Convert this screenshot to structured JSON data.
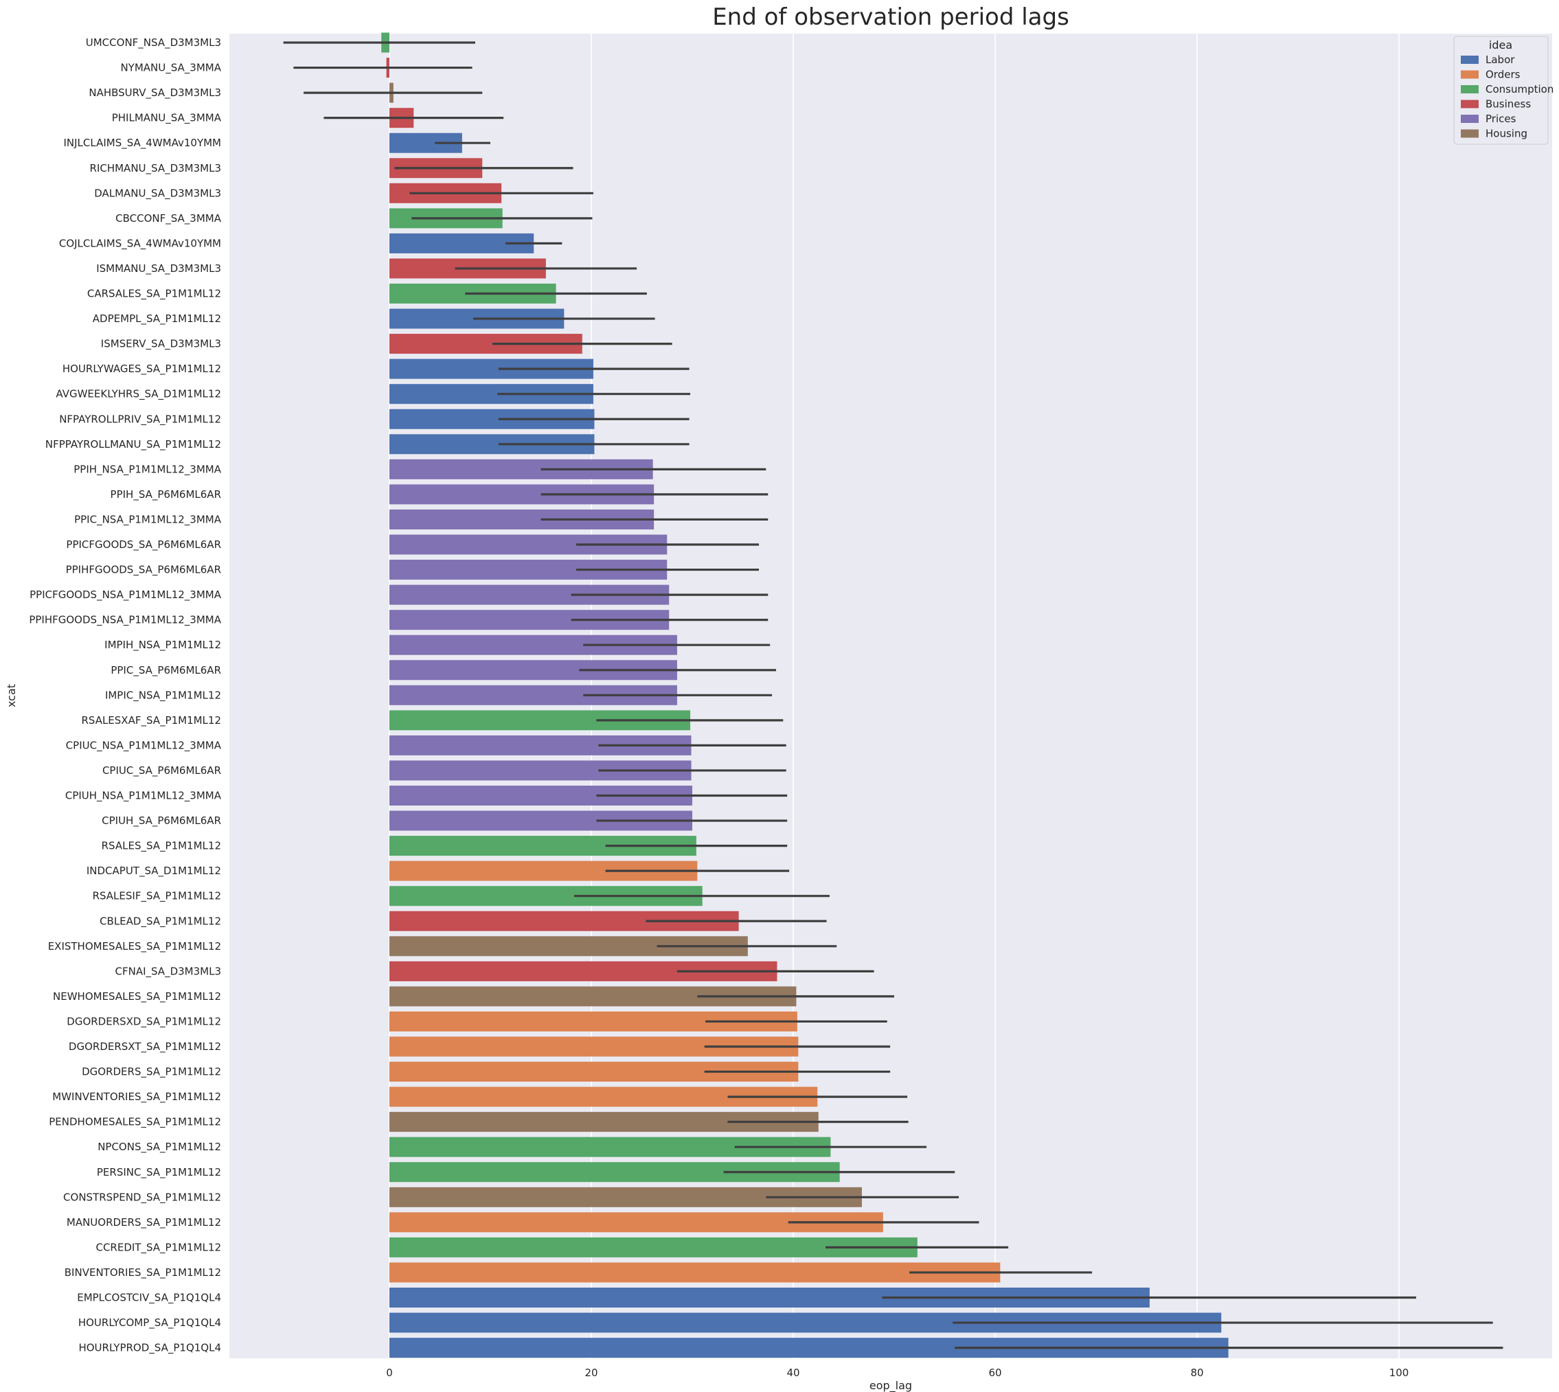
{
  "chart_data": {
    "type": "bar",
    "orientation": "horizontal",
    "title": "End of observation period lags",
    "xlabel": "eop_lag",
    "ylabel": "xcat",
    "xlim": [
      -17,
      115
    ],
    "xticks": [
      0,
      20,
      40,
      60,
      80,
      100
    ],
    "grid": true,
    "legend": {
      "title": "idea",
      "position": "top-right",
      "entries": [
        {
          "name": "Labor",
          "color": "#4c72b0"
        },
        {
          "name": "Orders",
          "color": "#dd8452"
        },
        {
          "name": "Consumption",
          "color": "#55a868"
        },
        {
          "name": "Business",
          "color": "#c44e52"
        },
        {
          "name": "Prices",
          "color": "#8172b3"
        },
        {
          "name": "Housing",
          "color": "#937860"
        }
      ]
    },
    "categories": [
      "UMCCONF_NSA_D3M3ML3",
      "NYMANU_SA_3MMA",
      "NAHBSURV_SA_D3M3ML3",
      "PHILMANU_SA_3MMA",
      "INJLCLAIMS_SA_4WMAv10YMM",
      "RICHMANU_SA_D3M3ML3",
      "DALMANU_SA_D3M3ML3",
      "CBCCONF_SA_3MMA",
      "COJLCLAIMS_SA_4WMAv10YMM",
      "ISMMANU_SA_D3M3ML3",
      "CARSALES_SA_P1M1ML12",
      "ADPEMPL_SA_P1M1ML12",
      "ISMSERV_SA_D3M3ML3",
      "HOURLYWAGES_SA_P1M1ML12",
      "AVGWEEKLYHRS_SA_D1M1ML12",
      "NFPAYROLLPRIV_SA_P1M1ML12",
      "NFPPAYROLLMANU_SA_P1M1ML12",
      "PPIH_NSA_P1M1ML12_3MMA",
      "PPIH_SA_P6M6ML6AR",
      "PPIC_NSA_P1M1ML12_3MMA",
      "PPICFGOODS_SA_P6M6ML6AR",
      "PPIHFGOODS_SA_P6M6ML6AR",
      "PPICFGOODS_NSA_P1M1ML12_3MMA",
      "PPIHFGOODS_NSA_P1M1ML12_3MMA",
      "IMPIH_NSA_P1M1ML12",
      "PPIC_SA_P6M6ML6AR",
      "IMPIC_NSA_P1M1ML12",
      "RSALESXAF_SA_P1M1ML12",
      "CPIUC_NSA_P1M1ML12_3MMA",
      "CPIUC_SA_P6M6ML6AR",
      "CPIUH_NSA_P1M1ML12_3MMA",
      "CPIUH_SA_P6M6ML6AR",
      "RSALES_SA_P1M1ML12",
      "INDCAPUT_SA_D1M1ML12",
      "RSALESIF_SA_P1M1ML12",
      "CBLEAD_SA_P1M1ML12",
      "EXISTHOMESALES_SA_P1M1ML12",
      "CFNAI_SA_D3M3ML3",
      "NEWHOMESALES_SA_P1M1ML12",
      "DGORDERSXD_SA_P1M1ML12",
      "DGORDERSXT_SA_P1M1ML12",
      "DGORDERS_SA_P1M1ML12",
      "MWINVENTORIES_SA_P1M1ML12",
      "PENDHOMESALES_SA_P1M1ML12",
      "NPCONS_SA_P1M1ML12",
      "PERSINC_SA_P1M1ML12",
      "CONSTRSPEND_SA_P1M1ML12",
      "MANUORDERS_SA_P1M1ML12",
      "CCREDIT_SA_P1M1ML12",
      "BINVENTORIES_SA_P1M1ML12",
      "EMPLCOSTCIV_SA_P1Q1QL4",
      "HOURLYCOMP_SA_P1Q1QL4",
      "HOURLYPROD_SA_P1Q1QL4"
    ],
    "groups": [
      "Consumption",
      "Business",
      "Housing",
      "Business",
      "Labor",
      "Business",
      "Business",
      "Consumption",
      "Labor",
      "Business",
      "Consumption",
      "Labor",
      "Business",
      "Labor",
      "Labor",
      "Labor",
      "Labor",
      "Prices",
      "Prices",
      "Prices",
      "Prices",
      "Prices",
      "Prices",
      "Prices",
      "Prices",
      "Prices",
      "Prices",
      "Consumption",
      "Prices",
      "Prices",
      "Prices",
      "Prices",
      "Consumption",
      "Orders",
      "Consumption",
      "Business",
      "Housing",
      "Business",
      "Housing",
      "Orders",
      "Orders",
      "Orders",
      "Orders",
      "Housing",
      "Consumption",
      "Consumption",
      "Housing",
      "Orders",
      "Consumption",
      "Orders",
      "Labor",
      "Labor",
      "Labor"
    ],
    "values": [
      -0.8,
      -0.3,
      0.4,
      2.4,
      7.2,
      9.2,
      11.1,
      11.2,
      14.3,
      15.5,
      16.5,
      17.3,
      19.1,
      20.2,
      20.2,
      20.3,
      20.3,
      26.1,
      26.2,
      26.2,
      27.5,
      27.5,
      27.7,
      27.7,
      28.5,
      28.5,
      28.5,
      29.8,
      29.9,
      29.9,
      30.0,
      30.0,
      30.4,
      30.5,
      31.0,
      34.6,
      35.5,
      38.4,
      40.3,
      40.4,
      40.5,
      40.5,
      42.4,
      42.5,
      43.7,
      44.6,
      46.8,
      48.9,
      52.3,
      60.5,
      75.3,
      82.4,
      83.1
    ],
    "ci_low": [
      -10.5,
      -9.5,
      -8.5,
      -6.5,
      4.5,
      0.5,
      2.0,
      2.2,
      11.5,
      6.5,
      7.5,
      8.3,
      10.2,
      10.8,
      10.7,
      10.8,
      10.8,
      15.0,
      15.0,
      15.0,
      18.5,
      18.5,
      18.0,
      18.0,
      19.2,
      18.8,
      19.2,
      20.5,
      20.7,
      20.7,
      20.5,
      20.5,
      21.4,
      21.4,
      18.3,
      25.4,
      26.5,
      28.5,
      30.5,
      31.3,
      31.2,
      31.2,
      33.5,
      33.5,
      34.2,
      33.1,
      37.3,
      39.5,
      43.2,
      51.5,
      48.8,
      55.8,
      56.0
    ],
    "ci_high": [
      8.5,
      8.2,
      9.2,
      11.3,
      10.0,
      18.2,
      20.2,
      20.1,
      17.1,
      24.5,
      25.5,
      26.3,
      28.0,
      29.7,
      29.8,
      29.7,
      29.7,
      37.3,
      37.5,
      37.5,
      36.6,
      36.6,
      37.5,
      37.5,
      37.7,
      38.3,
      37.9,
      39.0,
      39.3,
      39.3,
      39.4,
      39.4,
      39.4,
      39.6,
      43.6,
      43.3,
      44.3,
      48.0,
      50.0,
      49.3,
      49.6,
      49.6,
      51.3,
      51.4,
      53.2,
      56.0,
      56.4,
      58.4,
      61.3,
      69.6,
      101.7,
      109.3,
      110.3
    ]
  }
}
